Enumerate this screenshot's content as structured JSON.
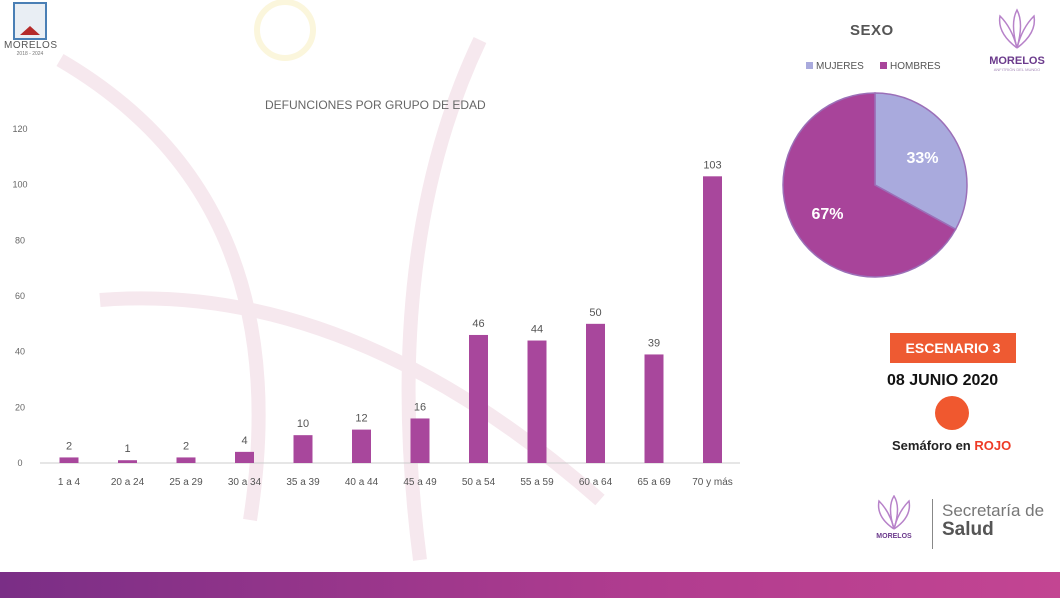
{
  "header": {
    "left_logo_name": "MORELOS",
    "left_logo_years": "2018 - 2024",
    "right_logo_name": "MORELOS",
    "right_logo_sub": "ANFITRIÓN DEL MUNDO"
  },
  "chart_data": [
    {
      "type": "bar",
      "title": "DEFUNCIONES POR GRUPO DE EDAD",
      "categories": [
        "1 a 4",
        "20 a 24",
        "25 a 29",
        "30 a 34",
        "35 a 39",
        "40 a 44",
        "45 a 49",
        "50 a 54",
        "55 a 59",
        "60 a 64",
        "65 a 69",
        "70 y más"
      ],
      "values": [
        2,
        1,
        2,
        4,
        10,
        12,
        16,
        46,
        44,
        50,
        39,
        103
      ],
      "yticks": [
        0,
        20,
        40,
        60,
        80,
        100,
        120
      ],
      "ylim": [
        0,
        120
      ],
      "xlabel": "",
      "ylabel": "",
      "color": "#a8479c",
      "grid": false
    },
    {
      "type": "pie",
      "title": "SEXO",
      "legend_position": "top",
      "slices": [
        {
          "name": "MUJERES",
          "value": 33,
          "label": "33%",
          "color": "#a9aadd"
        },
        {
          "name": "HOMBRES",
          "value": 67,
          "label": "67%",
          "color": "#a8449a"
        }
      ]
    }
  ],
  "status": {
    "scenario": "ESCENARIO 3",
    "date": "08 JUNIO 2020",
    "semaforo_prefix": "Semáforo en",
    "semaforo_color_word": "ROJO",
    "semaforo_color": "#f0582f"
  },
  "footer": {
    "logo_name": "MORELOS",
    "line1": "Secretaría de",
    "line2": "Salud"
  }
}
